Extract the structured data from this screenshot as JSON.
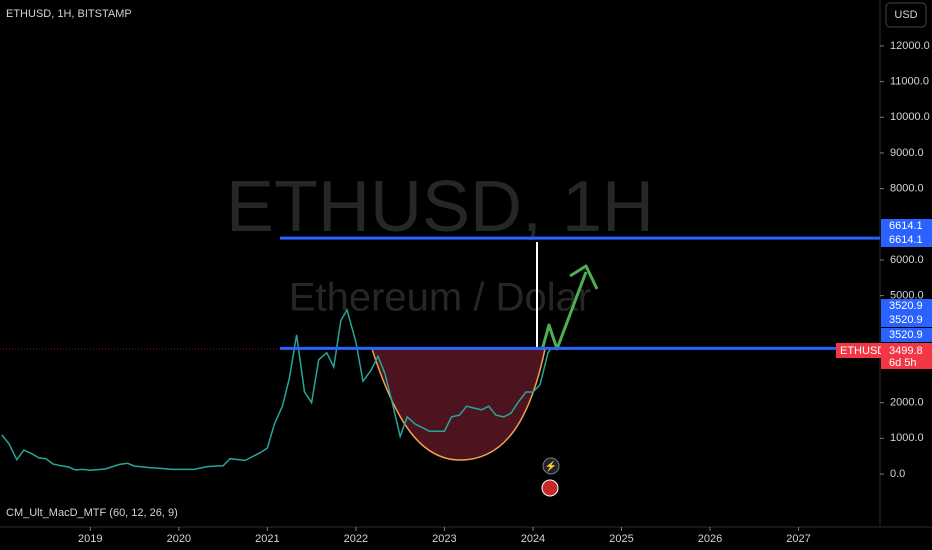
{
  "chart_data": {
    "type": "line",
    "title": "ETHUSD, 1H, BITSTAMP",
    "currency_button": "USD",
    "watermark": "ETHUSD, 1H",
    "watermark_subtitle": "Ethereum / Dolar",
    "indicator": "CM_Ult_MacD_MTF (60, 12, 26, 9)",
    "color": "#26a69a",
    "x": [
      2018.0,
      2018.08,
      2018.17,
      2018.25,
      2018.33,
      2018.42,
      2018.5,
      2018.58,
      2018.67,
      2018.75,
      2018.83,
      2018.92,
      2019.0,
      2019.17,
      2019.33,
      2019.42,
      2019.5,
      2019.67,
      2019.83,
      2019.92,
      2020.0,
      2020.17,
      2020.33,
      2020.5,
      2020.58,
      2020.75,
      2020.92,
      2021.0,
      2021.08,
      2021.17,
      2021.25,
      2021.33,
      2021.42,
      2021.5,
      2021.58,
      2021.67,
      2021.75,
      2021.83,
      2021.9,
      2022.0,
      2022.08,
      2022.17,
      2022.25,
      2022.33,
      2022.42,
      2022.5,
      2022.58,
      2022.67,
      2022.75,
      2022.83,
      2022.92,
      2023.0,
      2023.08,
      2023.17,
      2023.25,
      2023.33,
      2023.42,
      2023.5,
      2023.58,
      2023.67,
      2023.75,
      2023.83,
      2023.92,
      2024.0,
      2024.08,
      2024.17,
      2024.2
    ],
    "values": [
      1100,
      850,
      400,
      670,
      580,
      450,
      430,
      280,
      230,
      200,
      115,
      130,
      105,
      140,
      270,
      300,
      220,
      180,
      150,
      130,
      130,
      130,
      210,
      230,
      430,
      380,
      600,
      730,
      1400,
      1900,
      2700,
      3900,
      2300,
      2000,
      3200,
      3400,
      3000,
      4300,
      4600,
      3700,
      2600,
      2900,
      3300,
      2800,
      1900,
      1050,
      1600,
      1400,
      1300,
      1200,
      1200,
      1200,
      1600,
      1650,
      1900,
      1850,
      1800,
      1900,
      1650,
      1600,
      1700,
      2000,
      2300,
      2300,
      2500,
      3400,
      3500
    ],
    "xlim": [
      2017.98,
      2027.92
    ],
    "xticks": [
      2019,
      2020,
      2021,
      2022,
      2023,
      2024,
      2025,
      2026,
      2027
    ],
    "ylim": [
      -1486,
      13288
    ],
    "yticks": [
      {
        "value": 0,
        "label": "0.0"
      },
      {
        "value": 1000,
        "label": "1000.0"
      },
      {
        "value": 2000,
        "label": "2000.0"
      },
      {
        "value": 5000,
        "label": "5000.0"
      },
      {
        "value": 6000,
        "label": "6000.0"
      },
      {
        "value": 8000,
        "label": "8000.0"
      },
      {
        "value": 9000,
        "label": "9000.0"
      },
      {
        "value": 10000,
        "label": "10000.0"
      },
      {
        "value": 11000,
        "label": "11000.0"
      },
      {
        "value": 12000,
        "label": "12000.0"
      }
    ],
    "levels": [
      6614.1,
      3520.9
    ],
    "last_price": 3499.8,
    "last_price_symbol": "ETHUSD",
    "countdown": "6d 5h"
  }
}
